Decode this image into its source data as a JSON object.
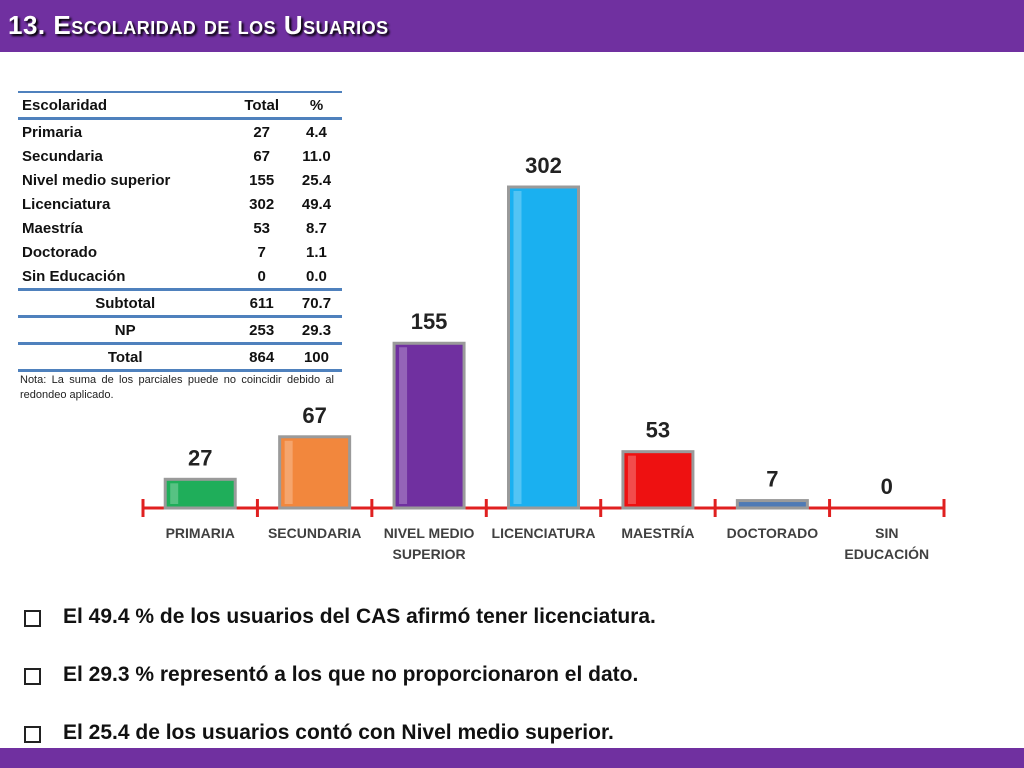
{
  "header": {
    "title": "13. Escolaridad de los Usuarios"
  },
  "table": {
    "headers": [
      "Escolaridad",
      "Total",
      "%"
    ],
    "rows": [
      [
        "Primaria",
        "27",
        "4.4"
      ],
      [
        "Secundaria",
        "67",
        "11.0"
      ],
      [
        "Nivel medio superior",
        "155",
        "25.4"
      ],
      [
        "Licenciatura",
        "302",
        "49.4"
      ],
      [
        "Maestría",
        "53",
        "8.7"
      ],
      [
        "Doctorado",
        "7",
        "1.1"
      ],
      [
        "Sin Educación",
        "0",
        "0.0"
      ]
    ],
    "subtotal": [
      "Subtotal",
      "611",
      "70.7"
    ],
    "np": [
      "NP",
      "253",
      "29.3"
    ],
    "total": [
      "Total",
      "864",
      "100"
    ],
    "note": "Nota: La suma de los parciales puede no coincidir debido al redondeo aplicado."
  },
  "chart_data": {
    "type": "bar",
    "categories": [
      [
        "PRIMARIA"
      ],
      [
        "SECUNDARIA"
      ],
      [
        "NIVEL MEDIO",
        "SUPERIOR"
      ],
      [
        "LICENCIATURA"
      ],
      [
        "MAESTRÍA"
      ],
      [
        "DOCTORADO"
      ],
      [
        "SIN",
        "EDUCACIÓN"
      ]
    ],
    "values": [
      27,
      67,
      155,
      302,
      53,
      7,
      0
    ],
    "colors": [
      "#1fae5a",
      "#f2873d",
      "#7030a0",
      "#1ab0f0",
      "#ee1111",
      "#4f7ab5",
      "#888888"
    ],
    "axis_color": "#e02020",
    "ylim": [
      0,
      302
    ]
  },
  "bullets": [
    "El 49.4 % de los usuarios del CAS afirmó tener licenciatura.",
    "El 29.3 % representó a los que no proporcionaron el dato.",
    "El 25.4 de los usuarios contó con Nivel medio superior."
  ]
}
